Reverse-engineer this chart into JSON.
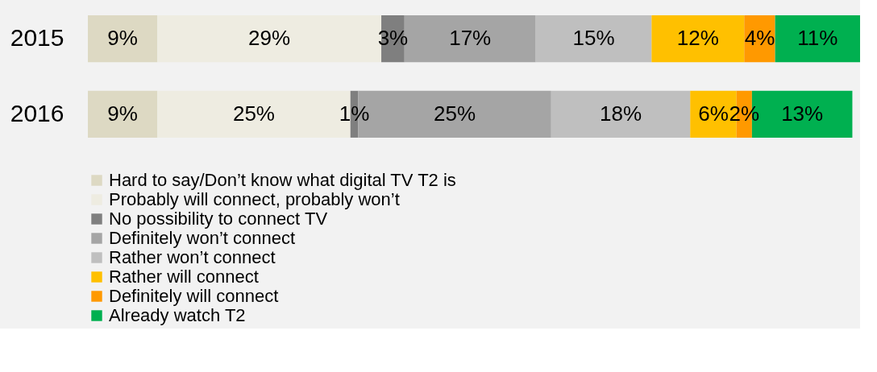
{
  "chart_data": {
    "type": "bar",
    "orientation": "horizontal",
    "stacked": true,
    "legend": "bottom",
    "categories": [
      "2015",
      "2016"
    ],
    "series": [
      {
        "name": "Hard to say/Don’t know what digital TV T2 is",
        "color": "#ddd9c3",
        "values": [
          9,
          9
        ],
        "value_labels": [
          "9%",
          "9%"
        ]
      },
      {
        "name": "Probably will connect, probably won’t",
        "color": "#eeece1",
        "values": [
          29,
          25
        ],
        "value_labels": [
          "29%",
          "25%"
        ]
      },
      {
        "name": "No possibility to connect TV",
        "color": "#7f7f7f",
        "values": [
          3,
          1
        ],
        "value_labels": [
          "3%",
          "1%"
        ]
      },
      {
        "name": "Definitely won’t connect",
        "color": "#a5a5a5",
        "values": [
          17,
          25
        ],
        "value_labels": [
          "17%",
          "25%"
        ]
      },
      {
        "name": "Rather won’t connect",
        "color": "#bfbfbf",
        "values": [
          15,
          18
        ],
        "value_labels": [
          "15%",
          "18%"
        ]
      },
      {
        "name": "Rather will connect",
        "color": "#ffc000",
        "values": [
          12,
          6
        ],
        "value_labels": [
          "12%",
          "6%"
        ]
      },
      {
        "name": "Definitely will connect",
        "color": "#ff9900",
        "values": [
          4,
          2
        ],
        "value_labels": [
          "4%",
          "2%"
        ]
      },
      {
        "name": "Already watch T2",
        "color": "#00b050",
        "values": [
          11,
          13
        ],
        "value_labels": [
          "11%",
          "13%"
        ]
      }
    ]
  }
}
